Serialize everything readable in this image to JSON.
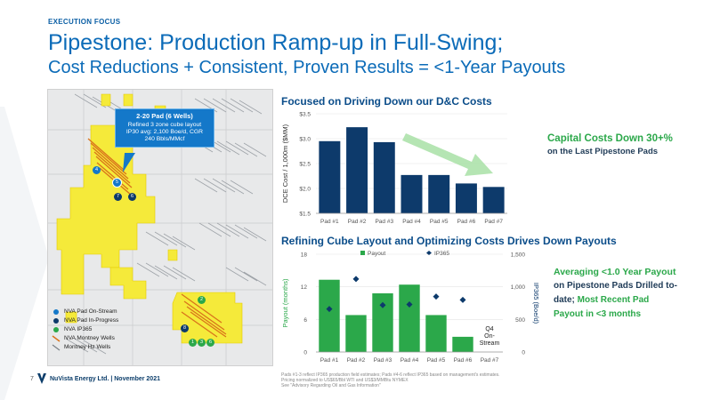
{
  "eyebrow": "EXECUTION FOCUS",
  "title_line1": "Pipestone: Production Ramp-up in Full-Swing;",
  "title_line2": "Cost Reductions + Consistent, Proven Results = <1-Year Payouts",
  "callout": {
    "title": "2-20 Pad (6 Wells)",
    "line1": "Refined 3 zone cube layout",
    "line2": "IP30 avg: 2,100 Boe/d, CGR",
    "line3": "240 Bbls/MMcf"
  },
  "map_markers": [
    "4",
    "5",
    "7",
    "6",
    "2",
    "8",
    "1",
    "3",
    "6"
  ],
  "map_legend": [
    {
      "label": "NVA Pad On-Stream",
      "icon": "light-blue-dot-icon"
    },
    {
      "label": "NVA Pad In-Progress",
      "icon": "navy-dot-icon"
    },
    {
      "label": "NVA IP365",
      "icon": "green-dot-icon"
    },
    {
      "label": "NVA Montney Wells",
      "icon": "orange-line-icon"
    },
    {
      "label": "Montney Hz Wells",
      "icon": "gray-line-icon"
    }
  ],
  "chart_data": [
    {
      "type": "bar",
      "title": "Focused on Driving Down our D&C Costs",
      "ylabel": "DCE Cost / 1,000m ($MM)",
      "categories": [
        "Pad #1",
        "Pad #2",
        "Pad #3",
        "Pad #4",
        "Pad #5",
        "Pad #6",
        "Pad #7"
      ],
      "values": [
        2.95,
        3.23,
        2.93,
        2.27,
        2.27,
        2.1,
        2.03
      ],
      "ylim": [
        1.5,
        3.5
      ],
      "yticks": [
        "$1.5",
        "$2.0",
        "$2.5",
        "$3.0",
        "$3.5"
      ],
      "color": "#0d3a6b",
      "annotation_line1": "Capital Costs Down 30+%",
      "annotation_line2": "on the Last Pipestone Pads"
    },
    {
      "type": "bar",
      "title": "Refining Cube Layout and Optimizing Costs Drives Down Payouts",
      "ylabel_left": "Payout (months)",
      "ylabel_right": "IP365 (Boe/d)",
      "categories": [
        "Pad #1",
        "Pad #2",
        "Pad #3",
        "Pad #4",
        "Pad #5",
        "Pad #6",
        "Pad #7"
      ],
      "series": [
        {
          "name": "Payout",
          "values": [
            13.3,
            6.8,
            10.8,
            12.4,
            6.8,
            2.8,
            null
          ],
          "color": "#2ba84a"
        },
        {
          "name": "IP365",
          "values": [
            660,
            1120,
            720,
            730,
            850,
            800,
            null
          ],
          "color": "#0d3a6b"
        }
      ],
      "ylim_left": [
        0,
        18
      ],
      "yticks_left": [
        "0",
        "6",
        "12",
        "18"
      ],
      "ylim_right": [
        0,
        1500
      ],
      "yticks_right": [
        "0",
        "500",
        "1,000",
        "1,500"
      ],
      "pad7_note": [
        "Q4",
        "On-",
        "Stream"
      ],
      "annotation": {
        "l1": "Averaging <1.0 Year Payout",
        "l2": "on Pipestone Pads Drilled to-",
        "l3a": "date;",
        "l3b": " Most Recent Pad",
        "l4": "Payout in <3 months"
      }
    }
  ],
  "footer": {
    "page": "7",
    "company": "NuVista Energy Ltd. | November 2021",
    "note1": "Pads #1-3 reflect IP365 production field estimates; Pads #4-6 reflect IP365 based on management's estimates.",
    "note2": "Pricing normalized to US$65/Bbl WTI and US$3/MMBtu NYMEX",
    "note3": "See \"Advisory Regarding Oil and Gas Information\""
  },
  "colors": {
    "brand_blue": "#0b6bb8",
    "navy": "#0d3a6b",
    "green": "#2ba84a",
    "yellow": "#f5ea3a"
  }
}
